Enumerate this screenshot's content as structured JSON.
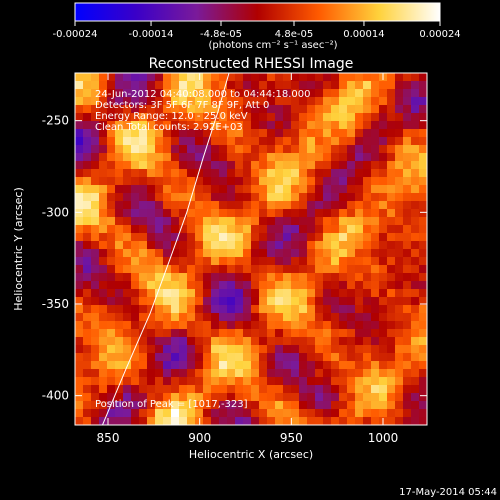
{
  "chart_data": {
    "type": "heatmap",
    "title": "Reconstructed RHESSI Image",
    "colorbar": {
      "min": -0.00024,
      "max": 0.00024,
      "tick_labels": [
        "-0.00024",
        "-0.00014",
        "-4.8e-05",
        "4.8e-05",
        "0.00014",
        "0.00024"
      ],
      "tick_values": [
        -0.00024,
        -0.00014,
        -4.8e-05,
        4.8e-05,
        0.00014,
        0.00024
      ],
      "unit_label": "(photons cm⁻² s⁻¹ asec⁻²)",
      "colormap": [
        "#0000ff",
        "#3a00c8",
        "#7a1a9a",
        "#b00000",
        "#ff5a00",
        "#ffd23c",
        "#ffffff"
      ]
    },
    "xlabel": "Heliocentric X (arcsec)",
    "ylabel": "Heliocentric Y (arcsec)",
    "xlim": [
      832,
      1024
    ],
    "ylim": [
      -416,
      -224
    ],
    "x_ticks": [
      850,
      900,
      950,
      1000
    ],
    "y_ticks": [
      -250,
      -300,
      -350,
      -400
    ],
    "annotations": [
      "24-Jun-2012 04:40:08.000 to 04:44:18.000",
      "Detectors: 3F 5F 6F 7F 8F 9F, Att 0",
      "Energy Range: 12.0 - 25.0 keV",
      "Clean     Total counts: 2.92E+03"
    ],
    "peak_label": "Position of Peak = [1017,-323]",
    "limb_curve": [
      [
        847,
        -416
      ],
      [
        860,
        -385
      ],
      [
        873,
        -355
      ],
      [
        884,
        -325
      ],
      [
        893,
        -300
      ],
      [
        902,
        -270
      ],
      [
        910,
        -245
      ],
      [
        916,
        -224
      ]
    ]
  },
  "footer": {
    "timestamp": "17-May-2014 05:44"
  }
}
